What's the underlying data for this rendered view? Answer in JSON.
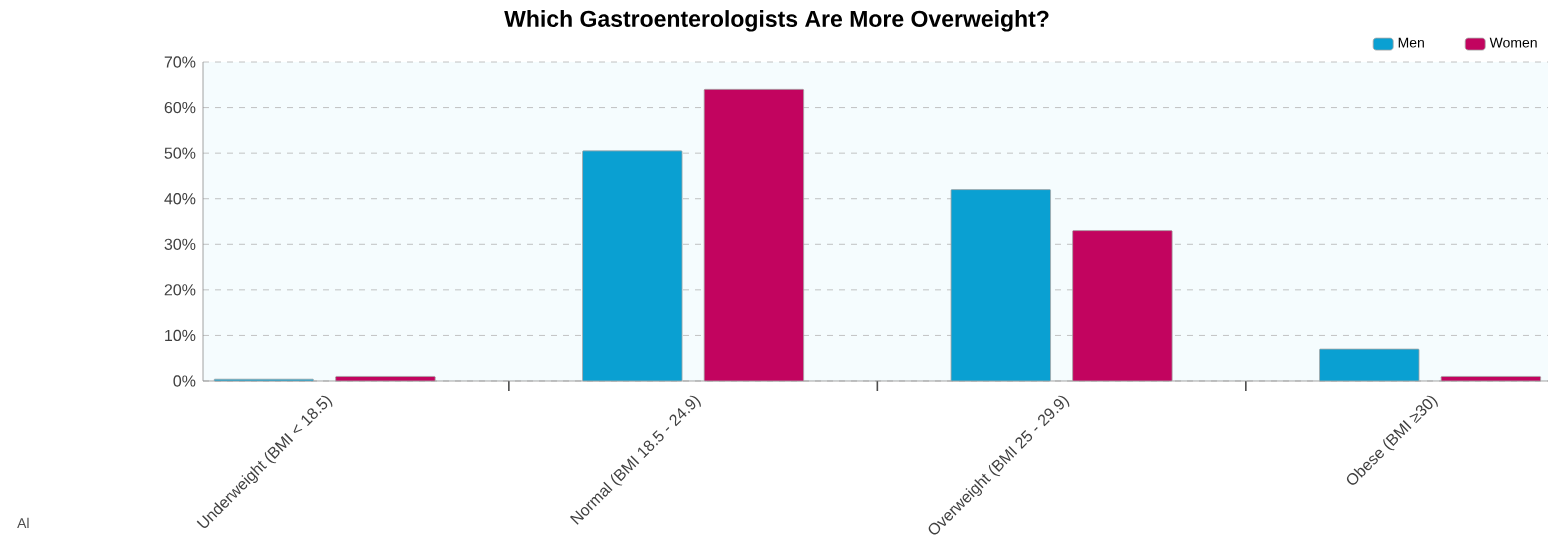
{
  "chart_data": {
    "type": "bar",
    "title": "Which Gastroenterologists Are More Overweight?",
    "categories": [
      "Underweight (BMI < 18.5)",
      "Normal (BMI 18.5 - 24.9)",
      "Overweight (BMI 25 - 29.9)",
      "Obese (BMI ≥30)"
    ],
    "series": [
      {
        "name": "Men",
        "color": "#0aa0d2",
        "values": [
          0.4,
          50.5,
          42,
          7
        ]
      },
      {
        "name": "Women",
        "color": "#c2045f",
        "values": [
          1,
          64,
          33,
          1
        ]
      }
    ],
    "ylim": [
      0,
      70
    ],
    "yticks": [
      {
        "value": 0,
        "label": "0%"
      },
      {
        "value": 10,
        "label": "10%"
      },
      {
        "value": 20,
        "label": "20%"
      },
      {
        "value": 30,
        "label": "30%"
      },
      {
        "value": 40,
        "label": "40%"
      },
      {
        "value": 50,
        "label": "50%"
      },
      {
        "value": 60,
        "label": "60%"
      },
      {
        "value": 70,
        "label": "70%"
      }
    ],
    "grid": "y",
    "legend": "top right",
    "annotations": [
      "Al"
    ]
  }
}
